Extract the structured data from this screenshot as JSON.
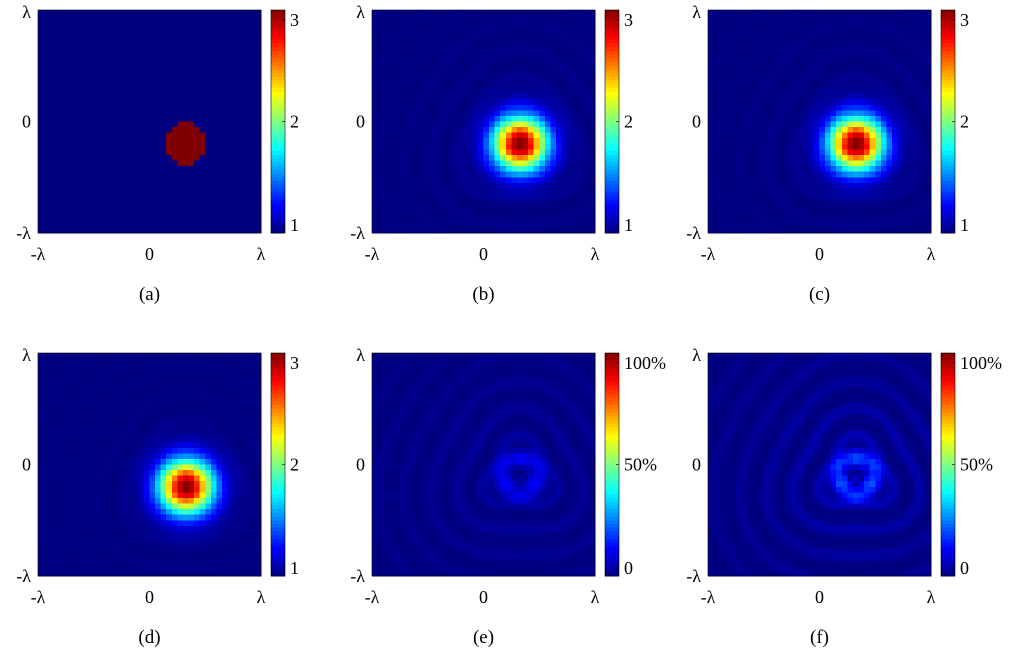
{
  "chart_data": [
    {
      "type": "heatmap",
      "caption": "(a)",
      "x_ticks": [
        "-λ",
        "0",
        "λ"
      ],
      "y_ticks": [
        "λ",
        "0",
        "-λ"
      ],
      "colorbar": {
        "min": 1,
        "max": 3,
        "ticks": [
          "3",
          "2",
          "1"
        ]
      },
      "center": [
        0.33,
        -0.2
      ],
      "sigma": 0.19,
      "peak": 3,
      "profile": "disk",
      "rings": 0.0
    },
    {
      "type": "heatmap",
      "caption": "(b)",
      "x_ticks": [
        "-λ",
        "0",
        "λ"
      ],
      "y_ticks": [
        "λ",
        "0",
        "-λ"
      ],
      "colorbar": {
        "min": 1,
        "max": 3,
        "ticks": [
          "3",
          "2",
          "1"
        ]
      },
      "center": [
        0.33,
        -0.2
      ],
      "sigma": 0.17,
      "peak": 3,
      "profile": "gaussian",
      "rings": 0.03
    },
    {
      "type": "heatmap",
      "caption": "(c)",
      "x_ticks": [
        "-λ",
        "0",
        "λ"
      ],
      "y_ticks": [
        "λ",
        "0",
        "-λ"
      ],
      "colorbar": {
        "min": 1,
        "max": 3,
        "ticks": [
          "3",
          "2",
          "1"
        ]
      },
      "center": [
        0.33,
        -0.2
      ],
      "sigma": 0.17,
      "peak": 3,
      "profile": "gaussian",
      "rings": 0.03
    },
    {
      "type": "heatmap",
      "caption": "(d)",
      "x_ticks": [
        "-λ",
        "0",
        "λ"
      ],
      "y_ticks": [
        "λ",
        "0",
        "-λ"
      ],
      "colorbar": {
        "min": 1,
        "max": 3,
        "ticks": [
          "3",
          "2",
          "1"
        ]
      },
      "center": [
        0.33,
        -0.2
      ],
      "sigma": 0.17,
      "peak": 3,
      "profile": "gaussian",
      "rings": 0.02
    },
    {
      "type": "heatmap",
      "caption": "(e)",
      "x_ticks": [
        "-λ",
        "0",
        "λ"
      ],
      "y_ticks": [
        "λ",
        "0",
        "-λ"
      ],
      "colorbar": {
        "min": 0,
        "max": 100,
        "ticks": [
          "100%",
          "50%",
          "0"
        ]
      },
      "center": [
        0.33,
        -0.1
      ],
      "sigma": 0.17,
      "peak": 0.1,
      "profile": "error",
      "rings": 0.05
    },
    {
      "type": "heatmap",
      "caption": "(f)",
      "x_ticks": [
        "-λ",
        "0",
        "λ"
      ],
      "y_ticks": [
        "λ",
        "0",
        "-λ"
      ],
      "colorbar": {
        "min": 0,
        "max": 100,
        "ticks": [
          "100%",
          "50%",
          "0"
        ]
      },
      "center": [
        0.33,
        -0.1
      ],
      "sigma": 0.17,
      "peak": 0.17,
      "profile": "error",
      "rings": 0.08
    }
  ]
}
